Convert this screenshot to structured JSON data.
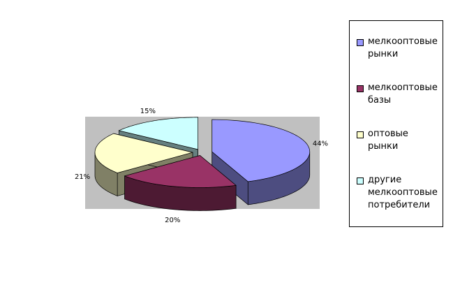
{
  "chart_data": {
    "type": "pie3d",
    "categories": [
      "мелкооптовые рынки",
      "мелкооптовые базы",
      "оптовые рынки",
      "другие мелкооптовые потребители"
    ],
    "values": [
      44,
      20,
      21,
      15
    ],
    "value_labels": [
      "44%",
      "20%",
      "21%",
      "15%"
    ],
    "colors": [
      "#9999ff",
      "#993366",
      "#ffffcc",
      "#ccffff"
    ],
    "legend": "right"
  }
}
